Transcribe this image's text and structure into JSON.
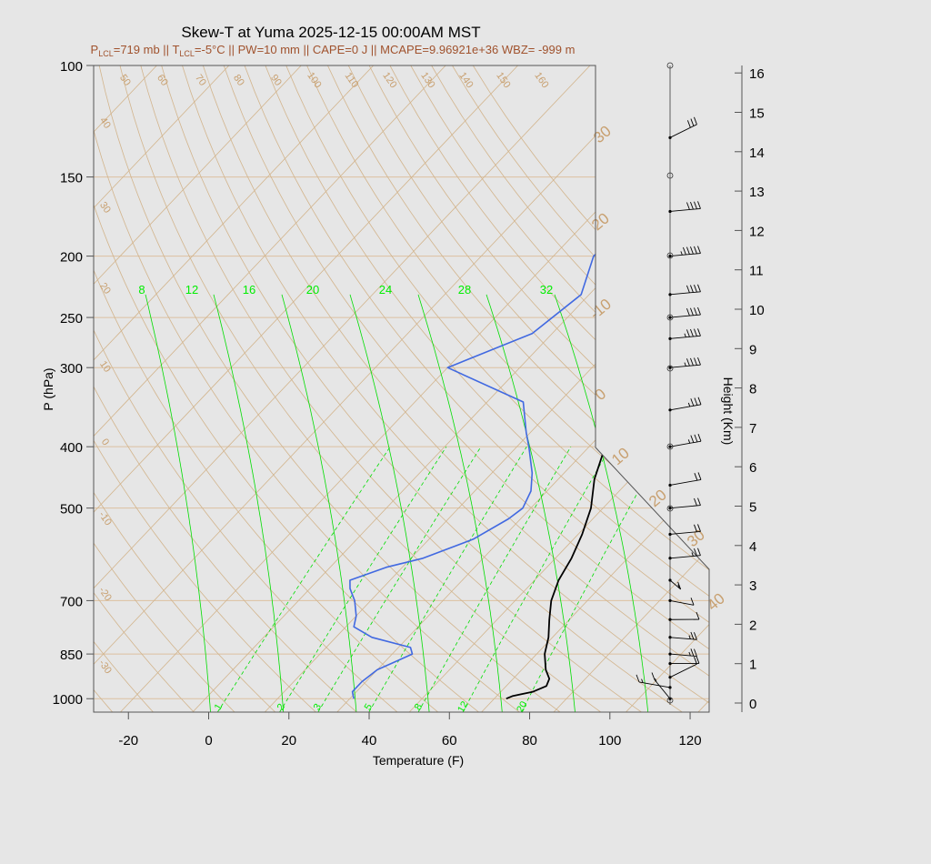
{
  "title": "Skew-T at Yuma 2025-12-15 00:00AM MST",
  "subtitle": {
    "lcl_p_prefix": "P",
    "lcl_p_sub": "LCL",
    "lcl_p_value": "=719 mb || ",
    "lcl_t_prefix": "T",
    "lcl_t_sub": "LCL",
    "lcl_t_value": "=-5°C || PW=10 mm || CAPE=0 J || MCAPE=9.96921e+36 WBZ= -999 m"
  },
  "colors": {
    "temperature": "#000000",
    "dewpoint": "#4169e1",
    "mixing_ratio": "#00dd00",
    "dry_adiabat": "#d2b48c",
    "isobar": "#dcc0a0"
  },
  "chart_data": {
    "type": "line",
    "chart_kind": "skew-t log-p",
    "xlabel": "Temperature (F)",
    "ylabel": "P (hPa)",
    "y2label": "Height (Km)",
    "xlim": [
      -28,
      125
    ],
    "ylim": [
      1050,
      100
    ],
    "y_scale": "log",
    "x_ticks": [
      "-20",
      "0",
      "20",
      "40",
      "60",
      "80",
      "100",
      "120"
    ],
    "p_ticks": [
      "100",
      "150",
      "200",
      "250",
      "300",
      "400",
      "500",
      "700",
      "850",
      "1000"
    ],
    "height_ticks": [
      "0",
      "1",
      "2",
      "3",
      "4",
      "5",
      "6",
      "7",
      "8",
      "9",
      "10",
      "11",
      "12",
      "13",
      "14",
      "15",
      "16"
    ],
    "mixing_ratio_top_labels": [
      "8",
      "12",
      "16",
      "20",
      "24",
      "28",
      "32"
    ],
    "mixing_ratio_bottom_labels": [
      "1",
      "2",
      "3",
      "5",
      "8",
      "12",
      "20"
    ],
    "dry_adiabat_labels": [
      "50",
      "60",
      "70",
      "80",
      "90",
      "100",
      "110",
      "120",
      "130",
      "140",
      "150",
      "160"
    ],
    "dry_adiabat_left_labels": [
      "40",
      "30",
      "20",
      "10",
      "0",
      "-10",
      "-20",
      "-30"
    ],
    "skewed_temp_labels": [
      "30",
      "20",
      "-10",
      "0",
      "10",
      "20",
      "30",
      "40"
    ],
    "series": [
      {
        "name": "",
        "color": "#000000",
        "values": [
          {
            "p": 1000,
            "t": 71
          },
          {
            "p": 990,
            "t": 72
          },
          {
            "p": 975,
            "t": 76
          },
          {
            "p": 955,
            "t": 78
          },
          {
            "p": 930,
            "t": 77
          },
          {
            "p": 900,
            "t": 74
          },
          {
            "p": 850,
            "t": 70
          },
          {
            "p": 800,
            "t": 67
          },
          {
            "p": 750,
            "t": 63
          },
          {
            "p": 700,
            "t": 59
          },
          {
            "p": 650,
            "t": 56
          },
          {
            "p": 600,
            "t": 54
          },
          {
            "p": 550,
            "t": 51
          },
          {
            "p": 500,
            "t": 47
          },
          {
            "p": 450,
            "t": 41
          },
          {
            "p": 400,
            "t": 36
          },
          {
            "p": 350,
            "t": 32
          },
          {
            "p": 320,
            "t": 30
          },
          {
            "p": 300,
            "t": 30
          },
          {
            "p": 260,
            "t": 29
          },
          {
            "p": 230,
            "t": 29
          },
          {
            "p": 200,
            "t": 32
          },
          {
            "p": 175,
            "t": 36
          },
          {
            "p": 150,
            "t": 41
          },
          {
            "p": 125,
            "t": 45
          },
          {
            "p": 100,
            "t": 50
          }
        ]
      },
      {
        "name": "",
        "color": "#4169e1",
        "values": [
          {
            "p": 1000,
            "t": 33
          },
          {
            "p": 975,
            "t": 31
          },
          {
            "p": 940,
            "t": 31
          },
          {
            "p": 900,
            "t": 32
          },
          {
            "p": 870,
            "t": 35
          },
          {
            "p": 850,
            "t": 37
          },
          {
            "p": 830,
            "t": 35
          },
          {
            "p": 800,
            "t": 23
          },
          {
            "p": 770,
            "t": 16
          },
          {
            "p": 740,
            "t": 14
          },
          {
            "p": 700,
            "t": 10
          },
          {
            "p": 670,
            "t": 6
          },
          {
            "p": 650,
            "t": 4
          },
          {
            "p": 620,
            "t": 10
          },
          {
            "p": 600,
            "t": 17
          },
          {
            "p": 560,
            "t": 25
          },
          {
            "p": 520,
            "t": 29
          },
          {
            "p": 500,
            "t": 30
          },
          {
            "p": 470,
            "t": 28
          },
          {
            "p": 440,
            "t": 24
          },
          {
            "p": 400,
            "t": 17
          },
          {
            "p": 380,
            "t": 13
          },
          {
            "p": 340,
            "t": 5
          },
          {
            "p": 300,
            "t": -22
          },
          {
            "p": 265,
            "t": -9
          },
          {
            "p": 230,
            "t": -6
          },
          {
            "p": 200,
            "t": -12
          },
          {
            "p": 170,
            "t": -10
          },
          {
            "p": 100,
            "t": 20
          }
        ]
      }
    ]
  },
  "wind_barbs": [
    {
      "p": 1000,
      "dir": 30,
      "spd": 5
    },
    {
      "p": 960,
      "dir": 90,
      "spd": 5
    },
    {
      "p": 925,
      "dir": 300,
      "spd": 10
    },
    {
      "p": 880,
      "dir": 250,
      "spd": 10
    },
    {
      "p": 850,
      "dir": 240,
      "spd": 15
    },
    {
      "p": 800,
      "dir": 240,
      "spd": 15
    },
    {
      "p": 750,
      "dir": 250,
      "spd": 10
    },
    {
      "p": 700,
      "dir": 230,
      "spd": 10
    },
    {
      "p": 650,
      "dir": 200,
      "spd": 5
    },
    {
      "p": 600,
      "dir": 260,
      "spd": 15
    },
    {
      "p": 550,
      "dir": 260,
      "spd": 20
    },
    {
      "p": 500,
      "dir": 260,
      "spd": 20
    },
    {
      "p": 460,
      "dir": 270,
      "spd": 20
    },
    {
      "p": 400,
      "dir": 270,
      "spd": 25
    },
    {
      "p": 350,
      "dir": 270,
      "spd": 25
    },
    {
      "p": 300,
      "dir": 260,
      "spd": 35
    },
    {
      "p": 270,
      "dir": 260,
      "spd": 35
    },
    {
      "p": 250,
      "dir": 260,
      "spd": 40
    },
    {
      "p": 230,
      "dir": 260,
      "spd": 40
    },
    {
      "p": 200,
      "dir": 260,
      "spd": 45
    },
    {
      "p": 170,
      "dir": 260,
      "spd": 40
    },
    {
      "p": 130,
      "dir": 300,
      "spd": 30
    }
  ]
}
